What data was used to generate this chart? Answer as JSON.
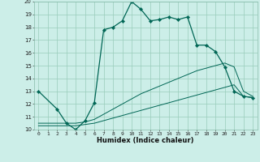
{
  "xlabel": "Humidex (Indice chaleur)",
  "background_color": "#cceee8",
  "grid_color": "#99ccbb",
  "line_color": "#006655",
  "xlim": [
    -0.5,
    23.5
  ],
  "ylim": [
    10,
    20
  ],
  "xticks": [
    0,
    1,
    2,
    3,
    4,
    5,
    6,
    7,
    8,
    9,
    10,
    11,
    12,
    13,
    14,
    15,
    16,
    17,
    18,
    19,
    20,
    21,
    22,
    23
  ],
  "yticks": [
    10,
    11,
    12,
    13,
    14,
    15,
    16,
    17,
    18,
    19,
    20
  ],
  "series": [
    {
      "x": [
        0,
        2,
        3,
        4,
        5,
        6,
        7,
        8,
        9,
        10,
        11,
        12,
        13,
        14,
        15,
        16,
        17,
        18,
        19,
        20,
        21,
        22,
        23
      ],
      "y": [
        13.0,
        11.6,
        10.5,
        10.0,
        10.7,
        12.1,
        17.8,
        18.0,
        18.5,
        20.0,
        19.4,
        18.5,
        18.6,
        18.8,
        18.6,
        18.8,
        16.6,
        16.6,
        16.1,
        14.9,
        13.0,
        12.6,
        12.5
      ],
      "markers": true
    },
    {
      "x": [
        0,
        2,
        3,
        4,
        5,
        6,
        7,
        8,
        9,
        10,
        11,
        12,
        13,
        14,
        15,
        16,
        17,
        18,
        19,
        20,
        21,
        22,
        23
      ],
      "y": [
        10.5,
        10.5,
        10.5,
        10.5,
        10.6,
        10.8,
        11.2,
        11.6,
        12.0,
        12.4,
        12.8,
        13.1,
        13.4,
        13.7,
        14.0,
        14.3,
        14.6,
        14.8,
        15.0,
        15.2,
        14.9,
        13.0,
        12.6
      ],
      "markers": false
    },
    {
      "x": [
        0,
        2,
        3,
        4,
        5,
        6,
        7,
        8,
        9,
        10,
        11,
        12,
        13,
        14,
        15,
        16,
        17,
        18,
        19,
        20,
        21,
        22,
        23
      ],
      "y": [
        10.3,
        10.3,
        10.3,
        10.3,
        10.4,
        10.5,
        10.7,
        10.9,
        11.1,
        11.3,
        11.5,
        11.7,
        11.9,
        12.1,
        12.3,
        12.5,
        12.7,
        12.9,
        13.1,
        13.3,
        13.5,
        12.6,
        12.5
      ],
      "markers": false
    }
  ]
}
